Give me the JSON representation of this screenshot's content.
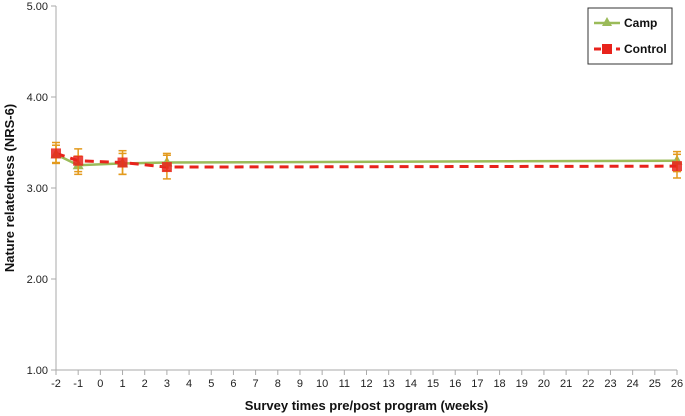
{
  "chart_data": {
    "type": "line",
    "xlabel": "Survey times pre/post program (weeks)",
    "ylabel": "Nature relatedness (NRS-6)",
    "ylim": [
      1.0,
      5.0
    ],
    "yticks": [
      "1.00",
      "2.00",
      "3.00",
      "4.00",
      "5.00"
    ],
    "ytick_values": [
      1,
      2,
      3,
      4,
      5
    ],
    "xlim": [
      -2,
      26
    ],
    "xticks": [
      -2,
      -1,
      0,
      1,
      2,
      3,
      4,
      5,
      6,
      7,
      8,
      9,
      10,
      11,
      12,
      13,
      14,
      15,
      16,
      17,
      18,
      19,
      20,
      21,
      22,
      23,
      24,
      25,
      26
    ],
    "grid": false,
    "legend_position": "top-right",
    "series": [
      {
        "name": "Camp",
        "color": "#9bbb59",
        "line_style": "solid",
        "marker": "triangle",
        "x": [
          -2,
          -1,
          1,
          3,
          26
        ],
        "y": [
          3.37,
          3.25,
          3.27,
          3.28,
          3.3
        ],
        "err_low": [
          3.28,
          3.15,
          3.15,
          3.19,
          3.18
        ],
        "err_high": [
          3.47,
          3.35,
          3.38,
          3.38,
          3.4
        ]
      },
      {
        "name": "Control",
        "color": "#e8231c",
        "line_style": "dashed",
        "marker": "square",
        "x": [
          -2,
          -1,
          1,
          3,
          26
        ],
        "y": [
          3.38,
          3.3,
          3.28,
          3.23,
          3.24
        ],
        "err_low": [
          3.27,
          3.18,
          3.15,
          3.1,
          3.11
        ],
        "err_high": [
          3.5,
          3.43,
          3.41,
          3.36,
          3.37
        ]
      }
    ],
    "errorbar_color": "#e39a1d"
  }
}
